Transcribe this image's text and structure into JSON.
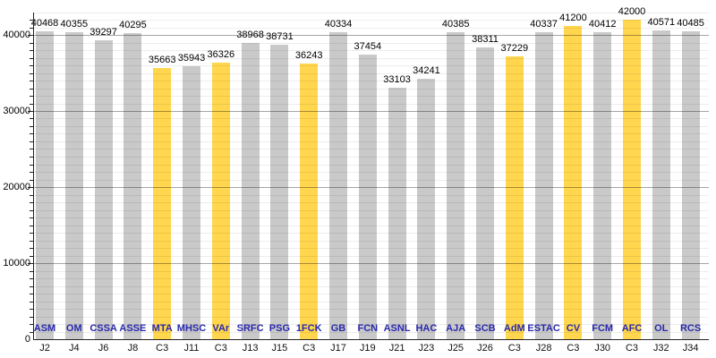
{
  "chart_data": {
    "type": "bar",
    "title": "",
    "xlabel": "",
    "ylabel": "",
    "ylim": [
      0,
      43000
    ],
    "y_ticks": [
      0,
      10000,
      20000,
      30000,
      40000
    ],
    "y_tick_labels": [
      "0",
      "10000",
      "20000",
      "30000",
      "40000"
    ],
    "minor_grid_step": 1000,
    "grid": "on",
    "legend": "none",
    "categories": [
      "ASM",
      "OM",
      "CSSA",
      "ASSE",
      "MTA",
      "MHSC",
      "VAr",
      "SRFC",
      "PSG",
      "1FCK",
      "GB",
      "FCN",
      "ASNL",
      "HAC",
      "AJA",
      "SCB",
      "AdM",
      "ESTAC",
      "CV",
      "FCM",
      "AFC",
      "OL",
      "RCS"
    ],
    "matchdays": [
      "J2",
      "J4",
      "J6",
      "J8",
      "C3",
      "J11",
      "C3",
      "J13",
      "J15",
      "C3",
      "J17",
      "J19",
      "J21",
      "J23",
      "J25",
      "J26",
      "C3",
      "J28",
      "C3",
      "J30",
      "C3",
      "J32",
      "J34"
    ],
    "values": [
      40468,
      40355,
      39297,
      40295,
      35663,
      35943,
      36326,
      38968,
      38731,
      36243,
      40334,
      37454,
      33103,
      34241,
      40385,
      38311,
      37229,
      40337,
      41200,
      40412,
      42000,
      40571,
      40485
    ],
    "highlighted": [
      false,
      false,
      false,
      false,
      true,
      false,
      true,
      false,
      false,
      true,
      false,
      false,
      false,
      false,
      false,
      false,
      true,
      false,
      true,
      false,
      true,
      false,
      false
    ],
    "colors": {
      "bar_default": "#C9C9C9",
      "bar_highlight": "#FFD64D",
      "team_label": "#2929AD",
      "value_label": "#000000",
      "matchday_label": "#111111",
      "axis": "#222222"
    }
  }
}
